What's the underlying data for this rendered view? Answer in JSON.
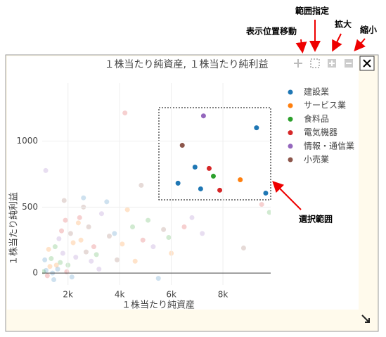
{
  "chart_data": {
    "type": "scatter",
    "title": "１株当たり純資産, １株当たり純利益",
    "x_label": "１株当たり純資産",
    "y_label": "１株当たり純利益",
    "xlim": [
      1000,
      9850
    ],
    "ylim": [
      -90,
      1440
    ],
    "xticks": [
      {
        "value": 2000,
        "label": "2k"
      },
      {
        "value": 4000,
        "label": "4k"
      },
      {
        "value": 6000,
        "label": "6k"
      },
      {
        "value": 8000,
        "label": "8k"
      }
    ],
    "yticks": [
      0,
      500,
      1000
    ],
    "grid": true,
    "legend": "upper right",
    "series": [
      {
        "name": "建設業",
        "color": "#1f77b4",
        "x": [
          9301,
          9658,
          7137,
          6260,
          6918
        ],
        "values": [
          1101,
          606,
          638,
          681,
          803
        ]
      },
      {
        "name": "サービス業",
        "color": "#ff7f0e",
        "x": [
          8671
        ],
        "values": [
          707
        ]
      },
      {
        "name": "食料品",
        "color": "#2ca02c",
        "x": [
          7630
        ],
        "values": [
          734
        ]
      },
      {
        "name": "電気機器",
        "color": "#d62728",
        "x": [
          7466,
          7877
        ],
        "values": [
          793,
          628
        ]
      },
      {
        "name": "情報・通信業",
        "color": "#9467bd",
        "x": [
          7247
        ],
        "values": [
          1191
        ]
      },
      {
        "name": "小売業",
        "color": "#8c564b",
        "x": [
          6425
        ],
        "values": [
          968
        ]
      }
    ],
    "background": {
      "x": [
        1100,
        1300,
        1500,
        1200,
        1800,
        2100,
        1400,
        2500,
        1700,
        1900,
        2300,
        2800,
        1600,
        1250,
        2000,
        3000,
        3300,
        2600,
        1450,
        2200,
        1350,
        1750,
        2900,
        3600,
        1150,
        2400,
        3100,
        1950,
        1650,
        2700,
        3800,
        4100,
        4500,
        4900,
        5300,
        5700,
        3500,
        4300,
        5100,
        4205,
        1137,
        4836,
        5500,
        6000,
        9800,
        9500,
        6800,
        3900,
        2150,
        1550,
        1050,
        2450,
        3200,
        1850,
        2600,
        4600,
        5900,
        6500,
        7200,
        8800
      ],
      "values": [
        100,
        50,
        200,
        -20,
        150,
        300,
        0,
        250,
        80,
        400,
        120,
        350,
        30,
        180,
        60,
        200,
        450,
        500,
        -50,
        230,
        110,
        320,
        90,
        280,
        20,
        380,
        140,
        10,
        260,
        160,
        300,
        220,
        350,
        250,
        200,
        330,
        540,
        480,
        400,
        1213,
        777,
        665,
        -40,
        150,
        460,
        520,
        420,
        100,
        -30,
        60,
        10,
        420,
        30,
        550,
        570,
        90,
        270,
        350,
        300,
        190
      ]
    }
  },
  "annotations": {
    "pan": "表示位置移動",
    "select": "範囲指定",
    "zoom_in": "拡大",
    "zoom_out": "縮小",
    "selection": "選択範囲"
  }
}
